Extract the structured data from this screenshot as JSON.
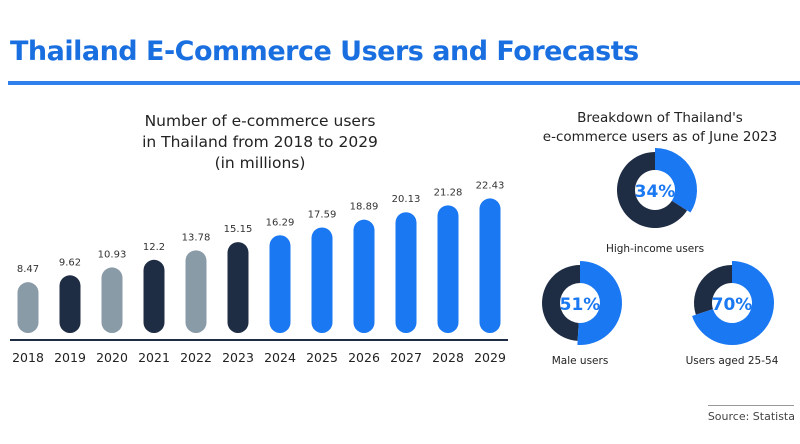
{
  "header": {
    "title": "Thailand E-Commerce Users and Forecasts"
  },
  "colors": {
    "accent": "#1a78f2",
    "dark": "#1f2d44",
    "gray": "#8a9ba8",
    "title": "#1a6fe0"
  },
  "chart_data": [
    {
      "type": "bar",
      "title_lines": [
        "Number of e-commerce users",
        "in Thailand from 2018 to 2029",
        "(in millions)"
      ],
      "categories": [
        "2018",
        "2019",
        "2020",
        "2021",
        "2022",
        "2023",
        "2024",
        "2025",
        "2026",
        "2027",
        "2028",
        "2029"
      ],
      "values": [
        8.47,
        9.62,
        10.93,
        12.2,
        13.78,
        15.15,
        16.29,
        17.59,
        18.89,
        20.13,
        21.28,
        22.43
      ],
      "value_labels": [
        "8.47",
        "9.62",
        "10.93",
        "12.2",
        "13.78",
        "15.15",
        "16.29",
        "17.59",
        "18.89",
        "20.13",
        "21.28",
        "22.43"
      ],
      "bar_colors": [
        "gray",
        "dark",
        "gray",
        "dark",
        "gray",
        "dark",
        "accent",
        "accent",
        "accent",
        "accent",
        "accent",
        "accent"
      ],
      "xlabel": "",
      "ylabel": "",
      "ylim": [
        0,
        22.43
      ]
    },
    {
      "type": "pie",
      "title_lines": [
        "Breakdown of Thailand's",
        "e-commerce users as of June 2023"
      ],
      "items": [
        {
          "label": "High-income users",
          "value": 34,
          "display": "34%"
        },
        {
          "label": "Male users",
          "value": 51,
          "display": "51%"
        },
        {
          "label": "Users aged 25-54",
          "value": 70,
          "display": "70%"
        }
      ]
    }
  ],
  "footer": {
    "source": "Source: Statista"
  }
}
